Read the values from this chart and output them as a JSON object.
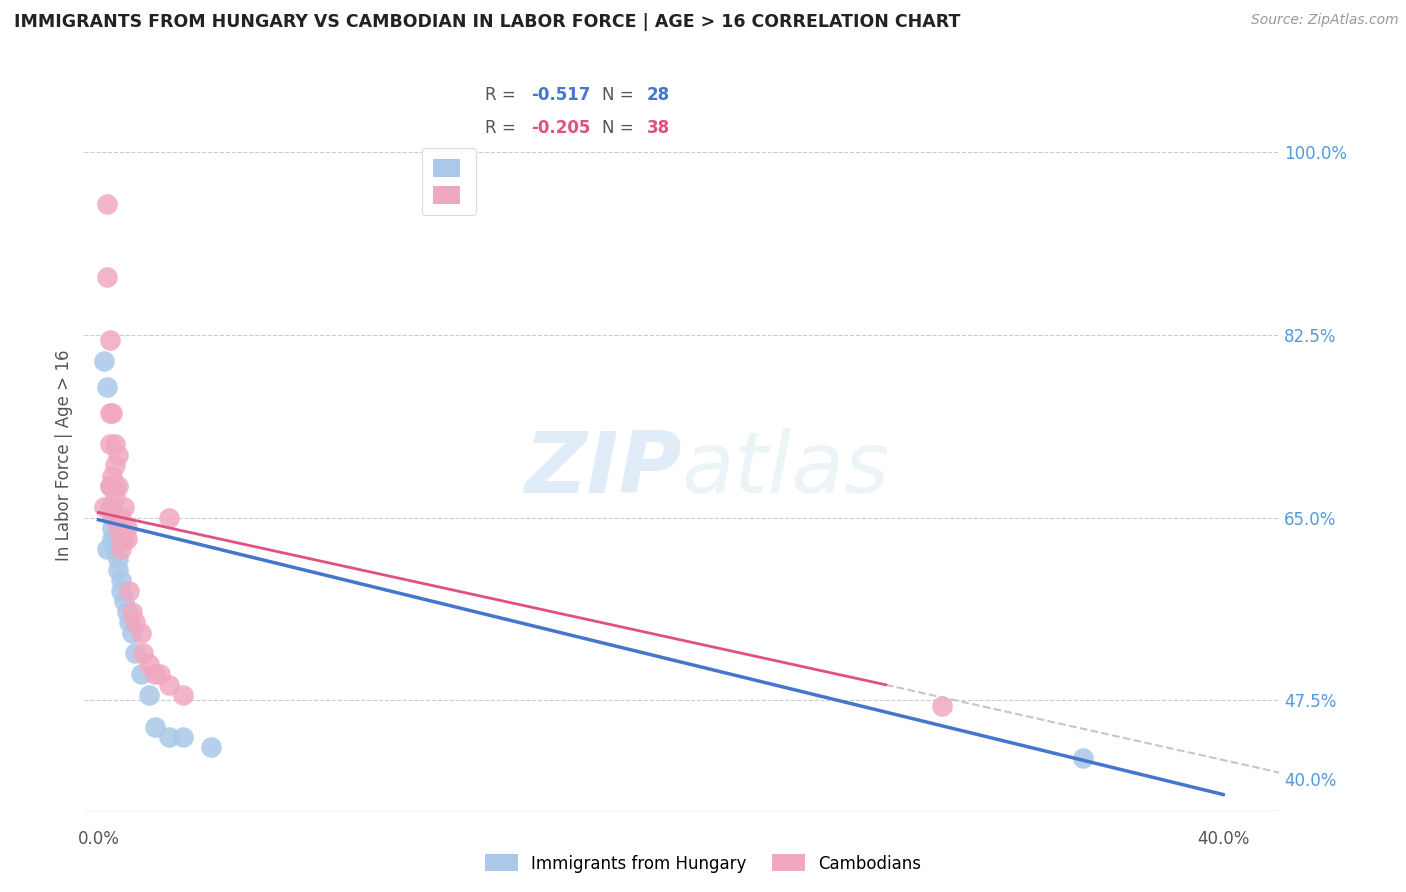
{
  "title": "IMMIGRANTS FROM HUNGARY VS CAMBODIAN IN LABOR FORCE | AGE > 16 CORRELATION CHART",
  "source": "Source: ZipAtlas.com",
  "xlabel_vals": [
    0.0,
    0.1,
    0.2,
    0.3,
    0.4
  ],
  "xlabel_ticks": [
    "0.0%",
    "",
    "",
    "",
    "40.0%"
  ],
  "ylabel_label": "In Labor Force | Age > 16",
  "grid_ytick_vals": [
    1.0,
    0.825,
    0.65,
    0.475
  ],
  "xlim": [
    -0.005,
    0.42
  ],
  "ylim": [
    0.36,
    1.06
  ],
  "hungary_color": "#aac8e8",
  "cambodian_color": "#f0a8c0",
  "hungary_line_color": "#4477cc",
  "cambodian_line_color": "#e05080",
  "dashed_line_color": "#ccbbbb",
  "right_label_color": "#5599dd",
  "title_color": "#222222",
  "source_color": "#999999",
  "bg_color": "#ffffff",
  "watermark": "ZIPatlas",
  "legend_R_color_hungary": "#4477cc",
  "legend_R_color_cambodian": "#e05080",
  "hungary_x": [
    0.002,
    0.003,
    0.004,
    0.004,
    0.005,
    0.005,
    0.005,
    0.006,
    0.006,
    0.006,
    0.007,
    0.007,
    0.007,
    0.008,
    0.008,
    0.009,
    0.01,
    0.011,
    0.012,
    0.013,
    0.015,
    0.018,
    0.02,
    0.025,
    0.03,
    0.04,
    0.35,
    0.003
  ],
  "hungary_y": [
    0.8,
    0.775,
    0.68,
    0.66,
    0.65,
    0.64,
    0.63,
    0.65,
    0.63,
    0.62,
    0.64,
    0.61,
    0.6,
    0.59,
    0.58,
    0.57,
    0.56,
    0.55,
    0.54,
    0.52,
    0.5,
    0.48,
    0.45,
    0.44,
    0.44,
    0.43,
    0.42,
    0.62
  ],
  "cambodian_x": [
    0.002,
    0.003,
    0.003,
    0.004,
    0.004,
    0.005,
    0.005,
    0.005,
    0.006,
    0.006,
    0.006,
    0.006,
    0.007,
    0.007,
    0.007,
    0.008,
    0.008,
    0.008,
    0.009,
    0.009,
    0.01,
    0.01,
    0.011,
    0.012,
    0.013,
    0.015,
    0.016,
    0.018,
    0.02,
    0.022,
    0.025,
    0.03,
    0.004,
    0.004,
    0.005,
    0.006,
    0.3,
    0.025
  ],
  "cambodian_y": [
    0.66,
    0.95,
    0.88,
    0.72,
    0.68,
    0.69,
    0.68,
    0.66,
    0.7,
    0.68,
    0.67,
    0.65,
    0.71,
    0.68,
    0.64,
    0.65,
    0.63,
    0.62,
    0.66,
    0.63,
    0.64,
    0.63,
    0.58,
    0.56,
    0.55,
    0.54,
    0.52,
    0.51,
    0.5,
    0.5,
    0.49,
    0.48,
    0.82,
    0.75,
    0.75,
    0.72,
    0.47,
    0.65
  ],
  "hungary_line_x0": 0.0,
  "hungary_line_x1": 0.4,
  "hungary_line_y0": 0.648,
  "hungary_line_y1": 0.385,
  "cambodian_line_x0": 0.0,
  "cambodian_line_x1": 0.28,
  "cambodian_line_y0": 0.655,
  "cambodian_line_y1": 0.49,
  "dashed_line_x0": 0.28,
  "dashed_line_x1": 0.42,
  "dashed_line_y0": 0.49,
  "dashed_line_y1": 0.406,
  "right_yticks": [
    1.0,
    0.825,
    0.65,
    0.475,
    0.4
  ],
  "right_ytick_labels": [
    "100.0%",
    "82.5%",
    "65.0%",
    "47.5%",
    "40.0%"
  ]
}
